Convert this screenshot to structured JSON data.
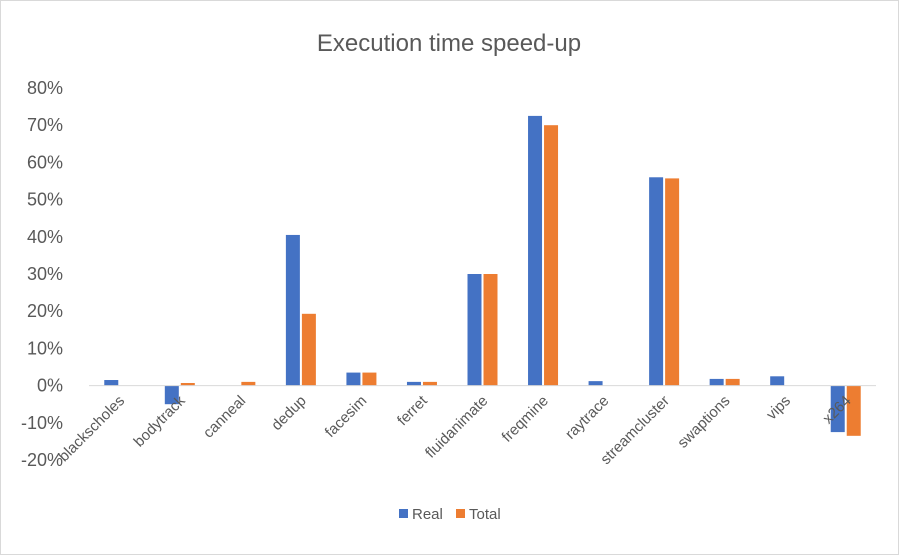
{
  "chart_data": {
    "type": "bar",
    "title": "Execution time speed-up",
    "xlabel": "",
    "ylabel": "",
    "categories": [
      "blackscholes",
      "bodytrack",
      "canneal",
      "dedup",
      "facesim",
      "ferret",
      "fluidanimate",
      "freqmine",
      "raytrace",
      "streamcluster",
      "swaptions",
      "vips",
      "x264"
    ],
    "series": [
      {
        "name": "Real",
        "values": [
          1.5,
          -5,
          0,
          40.5,
          3.5,
          1,
          30,
          72.5,
          1.2,
          56,
          1.8,
          2.5,
          -12.5
        ]
      },
      {
        "name": "Total",
        "values": [
          0,
          0.7,
          1,
          19.3,
          3.5,
          1,
          30,
          70,
          0,
          55.7,
          1.8,
          0,
          -13.5
        ]
      }
    ],
    "ylim": [
      -20,
      80
    ],
    "yticks": [
      -20,
      -10,
      0,
      10,
      20,
      30,
      40,
      50,
      60,
      70,
      80
    ],
    "ytick_labels": [
      "-20%",
      "-10%",
      "0%",
      "10%",
      "20%",
      "30%",
      "40%",
      "50%",
      "60%",
      "70%",
      "80%"
    ],
    "legend_position": "bottom",
    "grid": false,
    "colors": [
      "#4472C4",
      "#ED7D31"
    ]
  }
}
